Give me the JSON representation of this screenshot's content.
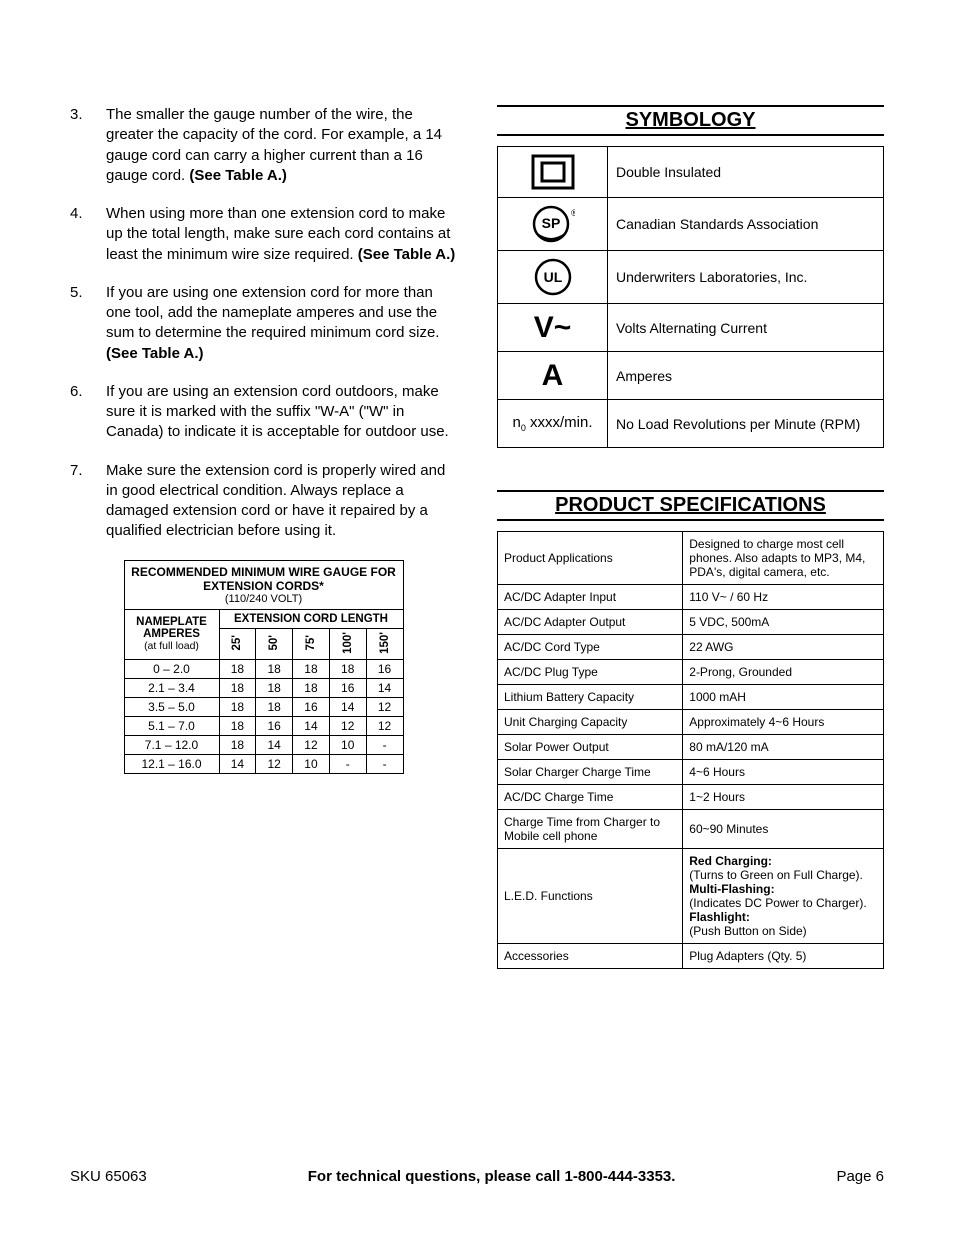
{
  "safety_list": {
    "items": [
      {
        "num": "3.",
        "text": "The smaller the gauge number of the wire, the greater the capacity of the cord.  For example, a 14 gauge cord can carry a higher current than a 16 gauge cord.  ",
        "bold_suffix": "(See Table A.)"
      },
      {
        "num": "4.",
        "text": "When using more than one extension cord to make up the total length, make sure each cord contains at least the minimum wire size required.  ",
        "bold_suffix": "(See Table A.)"
      },
      {
        "num": "5.",
        "text": "If you are using one extension cord for more than one tool, add the nameplate amperes and use the sum to determine the required minimum cord size.  ",
        "bold_suffix": "(See Table A.)"
      },
      {
        "num": "6.",
        "text": "If you are using an extension cord outdoors, make sure it is marked with the suffix \"W-A\" (\"W\" in Canada) to indicate it is acceptable for outdoor use.",
        "bold_suffix": ""
      },
      {
        "num": "7.",
        "text": "Make sure the extension cord is properly wired and in good electrical condition.  Always replace a damaged extension cord or have it repaired by a qualified electrician before using it.",
        "bold_suffix": ""
      }
    ]
  },
  "wire_table": {
    "title": "RECOMMENDED MINIMUM WIRE GAUGE FOR EXTENSION CORDS*",
    "subtitle": "(110/240 VOLT)",
    "row_header_top": "NAMEPLATE",
    "row_header_mid": "AMPERES",
    "row_header_sub": "(at full load)",
    "col_header": "EXTENSION CORD LENGTH",
    "lengths": [
      "25'",
      "50'",
      "75'",
      "100'",
      "150'"
    ],
    "rows": [
      {
        "range": "0 – 2.0",
        "vals": [
          "18",
          "18",
          "18",
          "18",
          "16"
        ]
      },
      {
        "range": "2.1 – 3.4",
        "vals": [
          "18",
          "18",
          "18",
          "16",
          "14"
        ]
      },
      {
        "range": "3.5 – 5.0",
        "vals": [
          "18",
          "18",
          "16",
          "14",
          "12"
        ]
      },
      {
        "range": "5.1 – 7.0",
        "vals": [
          "18",
          "16",
          "14",
          "12",
          "12"
        ]
      },
      {
        "range": "7.1 – 12.0",
        "vals": [
          "18",
          "14",
          "12",
          "10",
          "-"
        ]
      },
      {
        "range": "12.1 – 16.0",
        "vals": [
          "14",
          "12",
          "10",
          "-",
          "-"
        ]
      }
    ]
  },
  "symbology": {
    "heading": "SYMBOLOGY",
    "rows": [
      {
        "icon": "double-insulated",
        "label": "Double Insulated"
      },
      {
        "icon": "csa",
        "label": "Canadian Standards Association"
      },
      {
        "icon": "ul",
        "label": "Underwriters Laboratories, Inc."
      },
      {
        "icon": "vac",
        "label": "Volts Alternating Current"
      },
      {
        "icon": "amperes",
        "label": "Amperes"
      },
      {
        "icon": "noload",
        "label": "No Load Revolutions per Minute (RPM)",
        "text": "n₀ xxxx/min."
      }
    ]
  },
  "specs": {
    "heading": "PRODUCT SPECIFICATIONS",
    "rows": [
      {
        "k": "Product Applications",
        "v": "Designed to charge most cell phones.  Also adapts to MP3, M4, PDA's, digital camera, etc."
      },
      {
        "k": "AC/DC Adapter Input",
        "v": "110 V~ / 60 Hz"
      },
      {
        "k": "AC/DC Adapter Output",
        "v": "5 VDC, 500mA"
      },
      {
        "k": "AC/DC Cord Type",
        "v": "22 AWG"
      },
      {
        "k": "AC/DC Plug Type",
        "v": "2-Prong, Grounded"
      },
      {
        "k": "Lithium Battery Capacity",
        "v": "1000 mAH"
      },
      {
        "k": "Unit Charging Capacity",
        "v": "Approximately 4~6 Hours"
      },
      {
        "k": "Solar Power Output",
        "v": "80 mA/120 mA"
      },
      {
        "k": "Solar Charger Charge Time",
        "v": "4~6 Hours"
      },
      {
        "k": "AC/DC Charge Time",
        "v": "1~2 Hours"
      },
      {
        "k": "Charge Time from Charger to Mobile cell phone",
        "v": "60~90 Minutes"
      },
      {
        "k": "L.E.D. Functions",
        "led": [
          {
            "b": "Red Charging:",
            "t": "(Turns to Green on Full Charge)."
          },
          {
            "b": "Multi-Flashing:",
            "t": "(Indicates DC Power to Charger)."
          },
          {
            "b": "Flashlight:",
            "t": "(Push Button on Side)"
          }
        ]
      },
      {
        "k": "Accessories",
        "v": "Plug Adapters (Qty. 5)"
      }
    ]
  },
  "footer": {
    "sku": "SKU 65063",
    "call": "For technical questions, please call 1-800-444-3353.",
    "page": "Page 6"
  }
}
